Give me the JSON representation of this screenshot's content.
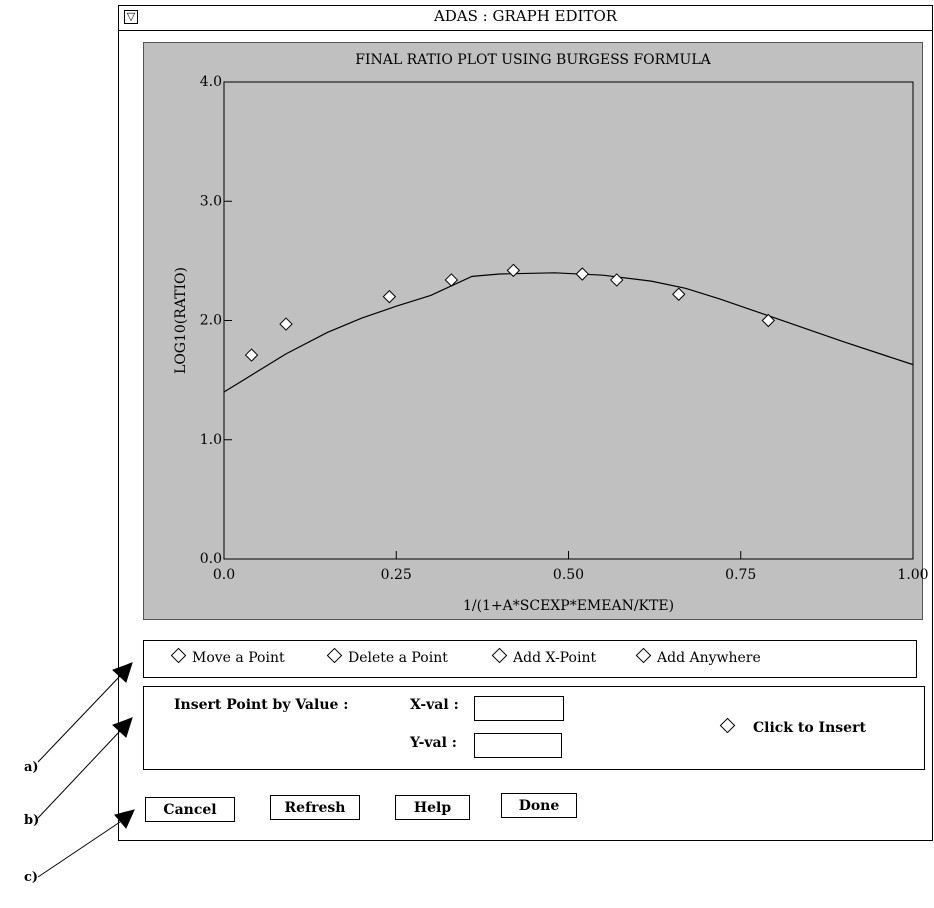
{
  "window": {
    "title": "ADAS : GRAPH EDITOR",
    "menu_glyph": "▽"
  },
  "chart_data": {
    "type": "scatter",
    "title": "FINAL RATIO PLOT USING BURGESS FORMULA",
    "xlabel": "1/(1+A*SCEXP*EMEAN/KTE)",
    "ylabel": "LOG10(RATIO)",
    "xlim": [
      0.0,
      1.0
    ],
    "ylim": [
      0.0,
      4.0
    ],
    "x_ticks": [
      "0.0",
      "0.25",
      "0.50",
      "0.75",
      "1.00"
    ],
    "x_tick_values": [
      0.0,
      0.25,
      0.5,
      0.75,
      1.0
    ],
    "y_ticks": [
      "0.0",
      "1.0",
      "2.0",
      "3.0",
      "4.0"
    ],
    "y_tick_values": [
      0.0,
      1.0,
      2.0,
      3.0,
      4.0
    ],
    "grid": false,
    "series": [
      {
        "kind": "points",
        "marker": "diamond",
        "x": [
          0.04,
          0.09,
          0.24,
          0.33,
          0.42,
          0.52,
          0.57,
          0.66,
          0.79
        ],
        "y": [
          1.71,
          1.97,
          2.2,
          2.34,
          2.42,
          2.39,
          2.34,
          2.22,
          2.0
        ]
      },
      {
        "kind": "line",
        "x": [
          0.0,
          0.09,
          0.15,
          0.2,
          0.25,
          0.3,
          0.36,
          0.4,
          0.48,
          0.55,
          0.62,
          0.67,
          0.72,
          0.8,
          0.9,
          1.0
        ],
        "y": [
          1.4,
          1.72,
          1.9,
          2.02,
          2.12,
          2.21,
          2.37,
          2.39,
          2.4,
          2.38,
          2.33,
          2.27,
          2.18,
          2.02,
          1.82,
          1.63
        ]
      }
    ]
  },
  "modes": {
    "move": "Move a Point",
    "delete": "Delete a Point",
    "add_x": "Add X-Point",
    "add_anywhere": "Add Anywhere"
  },
  "insert": {
    "label": "Insert Point by Value :",
    "x_label": "X-val :",
    "y_label": "Y-val :",
    "x_value": "",
    "y_value": "",
    "click_label": "Click to Insert"
  },
  "buttons": {
    "cancel": "Cancel",
    "refresh": "Refresh",
    "help": "Help",
    "done": "Done"
  },
  "annotations": {
    "a": "a)",
    "b": "b)",
    "c": "c)"
  }
}
